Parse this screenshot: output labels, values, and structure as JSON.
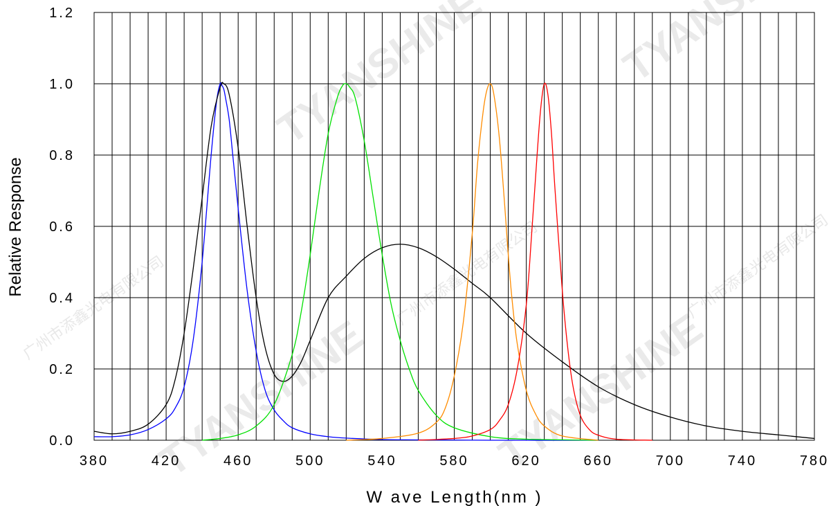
{
  "chart_data": {
    "type": "line",
    "title": "",
    "xlabel": "W ave  Length(nm )",
    "ylabel": "Relative Response",
    "xlim": [
      380,
      780
    ],
    "ylim": [
      0.0,
      1.2
    ],
    "x_ticks": [
      380,
      420,
      460,
      500,
      540,
      580,
      620,
      660,
      700,
      740,
      780
    ],
    "x_tick_labels": [
      "380",
      "420",
      "460",
      "500",
      "540",
      "580",
      "620",
      "660",
      "700",
      "740",
      "780"
    ],
    "y_ticks": [
      0.0,
      0.2,
      0.4,
      0.6,
      0.8,
      1.0,
      1.2
    ],
    "y_tick_labels": [
      "0.0",
      "0.2",
      "0.4",
      "0.6",
      "0.8",
      "1.0",
      "1.2"
    ],
    "grid": true,
    "grid_x_step": 10,
    "grid_y_step": 0.2,
    "legend": "none",
    "series": [
      {
        "color": "#0000ff",
        "x": [
          380,
          390,
          400,
          410,
          420,
          425,
          430,
          435,
          440,
          445,
          448,
          450,
          451,
          452,
          453,
          455,
          457,
          460,
          465,
          470,
          475,
          480,
          485,
          490,
          500,
          510,
          520,
          540,
          560,
          600,
          660
        ],
        "y": [
          0.01,
          0.01,
          0.015,
          0.03,
          0.06,
          0.09,
          0.15,
          0.28,
          0.5,
          0.8,
          0.95,
          1.0,
          0.995,
          0.985,
          0.96,
          0.9,
          0.8,
          0.65,
          0.42,
          0.25,
          0.14,
          0.085,
          0.055,
          0.035,
          0.018,
          0.01,
          0.006,
          0.002,
          0.001,
          0.0,
          0.0
        ]
      },
      {
        "color": "#000000",
        "x": [
          380,
          390,
          400,
          410,
          420,
          425,
          430,
          435,
          440,
          445,
          450,
          452,
          455,
          460,
          465,
          470,
          475,
          480,
          485,
          490,
          495,
          500,
          510,
          520,
          530,
          540,
          550,
          560,
          570,
          580,
          590,
          600,
          620,
          640,
          660,
          680,
          700,
          720,
          740,
          760,
          780
        ],
        "y": [
          0.025,
          0.018,
          0.025,
          0.045,
          0.1,
          0.17,
          0.3,
          0.48,
          0.68,
          0.88,
          0.99,
          1.0,
          0.97,
          0.82,
          0.6,
          0.4,
          0.26,
          0.185,
          0.165,
          0.18,
          0.22,
          0.28,
          0.4,
          0.46,
          0.51,
          0.54,
          0.55,
          0.54,
          0.515,
          0.48,
          0.44,
          0.4,
          0.3,
          0.22,
          0.15,
          0.1,
          0.065,
          0.04,
          0.025,
          0.015,
          0.005
        ]
      },
      {
        "color": "#00e000",
        "x": [
          440,
          450,
          460,
          470,
          480,
          490,
          495,
          500,
          505,
          510,
          515,
          518,
          520,
          522,
          525,
          530,
          535,
          540,
          545,
          550,
          555,
          560,
          570,
          580,
          600,
          620,
          660
        ],
        "y": [
          0.0,
          0.005,
          0.015,
          0.04,
          0.1,
          0.24,
          0.36,
          0.52,
          0.7,
          0.86,
          0.96,
          0.995,
          1.0,
          0.99,
          0.96,
          0.84,
          0.68,
          0.52,
          0.38,
          0.28,
          0.2,
          0.14,
          0.07,
          0.035,
          0.01,
          0.003,
          0.0
        ]
      },
      {
        "color": "#ff8c00",
        "x": [
          520,
          540,
          560,
          570,
          575,
          580,
          585,
          590,
          593,
          596,
          598,
          600,
          602,
          605,
          608,
          610,
          612,
          615,
          620,
          625,
          630,
          640,
          660
        ],
        "y": [
          0.0,
          0.005,
          0.02,
          0.05,
          0.09,
          0.18,
          0.33,
          0.58,
          0.78,
          0.92,
          0.98,
          1.0,
          0.97,
          0.85,
          0.66,
          0.52,
          0.4,
          0.27,
          0.14,
          0.075,
          0.04,
          0.012,
          0.0
        ]
      },
      {
        "color": "#ff0000",
        "x": [
          560,
          580,
          590,
          600,
          605,
          610,
          615,
          620,
          623,
          626,
          628,
          630,
          632,
          634,
          636,
          640,
          643,
          646,
          650,
          655,
          660,
          670,
          690
        ],
        "y": [
          0.0,
          0.005,
          0.012,
          0.03,
          0.055,
          0.1,
          0.2,
          0.38,
          0.58,
          0.8,
          0.93,
          1.0,
          0.97,
          0.86,
          0.7,
          0.42,
          0.26,
          0.15,
          0.07,
          0.03,
          0.014,
          0.003,
          0.0
        ]
      }
    ]
  },
  "watermarks": {
    "brand": "TYANSHINE",
    "company_cn": "广州市添鑫光电有限公司"
  }
}
